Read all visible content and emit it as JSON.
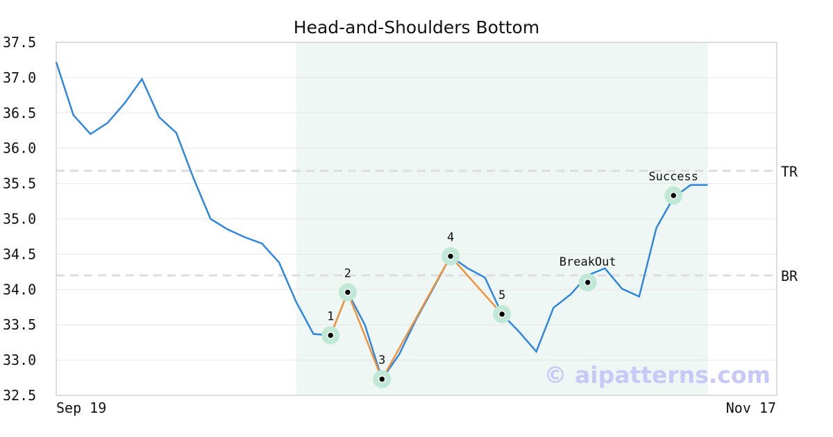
{
  "chart_data": {
    "type": "line",
    "title": "Head-and-Shoulders Bottom",
    "xlabel": "",
    "ylabel": "",
    "x_tick_labels": [
      "Sep 19",
      "Nov 17"
    ],
    "ylim": [
      32.5,
      37.5
    ],
    "y_ticks": [
      "32.5",
      "33.0",
      "33.5",
      "34.0",
      "34.5",
      "35.0",
      "35.5",
      "36.0",
      "36.5",
      "37.0",
      "37.5"
    ],
    "grid": "horizontal",
    "series": [
      {
        "color": "#2e86de",
        "values": [
          37.22,
          36.47,
          36.2,
          36.36,
          36.64,
          36.98,
          36.44,
          36.22,
          35.58,
          35.0,
          34.85,
          34.74,
          34.65,
          34.38,
          33.82,
          33.37,
          33.35,
          33.96,
          33.5,
          32.73,
          33.08,
          33.58,
          34.02,
          34.47,
          34.3,
          34.17,
          33.65,
          33.4,
          33.12,
          33.74,
          33.93,
          34.2,
          34.3,
          34.01,
          33.9,
          34.87,
          35.3,
          35.48,
          35.48
        ]
      }
    ],
    "pattern_line": {
      "color": "#f0933a",
      "points": [
        [
          16,
          33.35
        ],
        [
          17,
          33.96
        ],
        [
          19,
          32.73
        ],
        [
          23,
          34.47
        ],
        [
          26,
          33.65
        ]
      ]
    },
    "highlight_range": [
      14,
      38
    ],
    "markers": [
      {
        "label": "1",
        "index": 16,
        "value": 33.35
      },
      {
        "label": "2",
        "index": 17,
        "value": 33.96
      },
      {
        "label": "3",
        "index": 19,
        "value": 32.73
      },
      {
        "label": "4",
        "index": 23,
        "value": 34.47
      },
      {
        "label": "5",
        "index": 26,
        "value": 33.65
      },
      {
        "label": "BreakOut",
        "index": 31,
        "value": 34.1
      },
      {
        "label": "Success",
        "index": 36,
        "value": 35.33
      }
    ],
    "levels": [
      {
        "label": "TR",
        "value": 35.68
      },
      {
        "label": "BR",
        "value": 34.2
      }
    ],
    "watermark": "© aipatterns.com",
    "colors": {
      "highlight": "#eef7f3",
      "marker_halo": "#bfe9d6",
      "level_line": "#dddddd",
      "grid": "#e6e6e6",
      "frame": "#dddddd"
    }
  }
}
